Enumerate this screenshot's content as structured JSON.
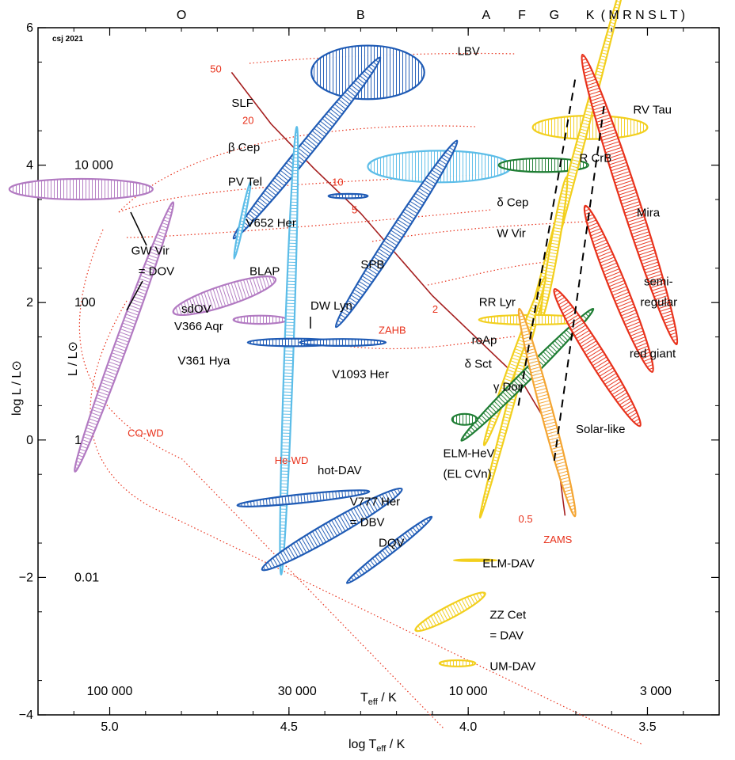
{
  "chart_data": {
    "type": "scatter",
    "title": "",
    "credit": "csj 2021",
    "xlabel": "log T_eff / K",
    "xlabel_parts": {
      "main": "log T",
      "sub": "eff",
      "tail": " / K"
    },
    "ylabel": "log L / L⊙",
    "inner_xlabel_parts": {
      "main": "T",
      "sub": "eff",
      "tail": " / K"
    },
    "inner_ylabel": "L / L⊙",
    "xlim": [
      5.2,
      3.3
    ],
    "ylim": [
      -4,
      6
    ],
    "x_ticks": [
      5.0,
      4.5,
      4.0,
      3.5
    ],
    "x_tick_labels": [
      "5.0",
      "4.5",
      "4.0",
      "3.5"
    ],
    "y_ticks": [
      -4,
      -2,
      0,
      2,
      4,
      6
    ],
    "y_tick_labels": [
      "−4",
      "−2",
      "0",
      "2",
      "4",
      "6"
    ],
    "teff_ticks": [
      {
        "x": 5.0,
        "label": "100 000"
      },
      {
        "x": 4.477,
        "label": "30 000"
      },
      {
        "x": 4.0,
        "label": "10 000"
      },
      {
        "x": 3.477,
        "label": "3 000"
      }
    ],
    "lum_ticks": [
      {
        "y": 4,
        "label": "10 000"
      },
      {
        "y": 2,
        "label": "100"
      },
      {
        "y": 0,
        "label": "1"
      },
      {
        "y": -2,
        "label": "0.01"
      }
    ],
    "spectral_types": [
      {
        "x": 4.8,
        "label": "O"
      },
      {
        "x": 4.3,
        "label": "B"
      },
      {
        "x": 3.95,
        "label": "A"
      },
      {
        "x": 3.85,
        "label": "F"
      },
      {
        "x": 3.76,
        "label": "G"
      },
      {
        "x": 3.66,
        "label": "K"
      },
      {
        "x": 3.63,
        "label": "( M R N S L T )"
      }
    ],
    "colors": {
      "blue": "#1f5bb5",
      "light_blue": "#5cbde8",
      "purple": "#b27ac2",
      "green": "#1e7d33",
      "yellow": "#f2cf1d",
      "orange": "#f4a532",
      "red": "#e8311b",
      "zams": "#a51f1f"
    },
    "regions": [
      {
        "name": "LBV",
        "x": 4.28,
        "y": 5.35,
        "rx": 0.315,
        "ry": 0.39,
        "rot": 0,
        "color": "blue"
      },
      {
        "name": "SLF",
        "x": 4.45,
        "y": 4.25,
        "rx": 0.65,
        "ry": 0.1,
        "rot": 51,
        "color": "blue"
      },
      {
        "name": "β Cep",
        "x": 4.08,
        "y": 3.98,
        "rx": 0.4,
        "ry": 0.23,
        "rot": 0,
        "color": "light_blue"
      },
      {
        "name": "SPB",
        "x": 4.2,
        "y": 3.0,
        "rx": 0.62,
        "ry": 0.1,
        "rot": 57,
        "color": "blue"
      },
      {
        "name": "V652 Her",
        "x": 4.335,
        "y": 3.55,
        "rx": 0.11,
        "ry": 0.032,
        "rot": 0,
        "color": "blue"
      },
      {
        "name": "PV Tel",
        "x": 4.63,
        "y": 3.2,
        "rx": 0.22,
        "ry": 0.028,
        "rot": 78,
        "color": "light_blue"
      },
      {
        "name": "GW Vir = DOV",
        "x": 5.08,
        "y": 3.65,
        "rx": 0.4,
        "ry": 0.15,
        "rot": 0,
        "color": "purple"
      },
      {
        "name": "sdOV",
        "x": 4.68,
        "y": 2.1,
        "rx": 0.3,
        "ry": 0.15,
        "rot": 18,
        "color": "purple"
      },
      {
        "name": "V366 Aqr",
        "x": 4.58,
        "y": 1.75,
        "rx": 0.15,
        "ry": 0.06,
        "rot": 0,
        "color": "purple"
      },
      {
        "name": "CO-WD",
        "x": 4.96,
        "y": 1.5,
        "rx": 0.8,
        "ry": 0.09,
        "rot": 70,
        "color": "purple"
      },
      {
        "name": "BLAP",
        "x": 4.5,
        "y": 1.3,
        "rx": 1.25,
        "ry": 0.065,
        "rot": 88,
        "color": "light_blue"
      },
      {
        "name": "V361 Hya",
        "x": 4.485,
        "y": 1.42,
        "rx": 0.26,
        "ry": 0.055,
        "rot": 0,
        "color": "blue"
      },
      {
        "name": "V1093 Her",
        "x": 4.35,
        "y": 1.42,
        "rx": 0.24,
        "ry": 0.05,
        "rot": 0,
        "color": "blue"
      },
      {
        "name": "hot-DAV",
        "x": 4.46,
        "y": -0.85,
        "rx": 0.37,
        "ry": 0.062,
        "rot": 6,
        "color": "blue"
      },
      {
        "name": "V777 Her = DBV",
        "x": 4.38,
        "y": -1.3,
        "rx": 0.45,
        "ry": 0.12,
        "rot": 30,
        "color": "blue"
      },
      {
        "name": "DQV",
        "x": 4.22,
        "y": -1.6,
        "rx": 0.3,
        "ry": 0.06,
        "rot": 38,
        "color": "blue"
      },
      {
        "name": "RV Tau",
        "x": 3.66,
        "y": 4.55,
        "rx": 0.32,
        "ry": 0.17,
        "rot": 0,
        "color": "yellow"
      },
      {
        "name": "R CrB",
        "x": 3.79,
        "y": 4.0,
        "rx": 0.25,
        "ry": 0.1,
        "rot": 0,
        "color": "green"
      },
      {
        "name": "δ Cep",
        "x": 3.76,
        "y": 2.9,
        "rx": 1.6,
        "ry": 0.06,
        "rot": 75,
        "color": "yellow"
      },
      {
        "name": "W Vir",
        "x": 3.76,
        "y": 2.8,
        "rx": 0.4,
        "ry": 0.06,
        "rot": 80,
        "color": "yellow"
      },
      {
        "name": "RR Lyr",
        "x": 3.82,
        "y": 1.75,
        "rx": 0.3,
        "ry": 0.07,
        "rot": 0,
        "color": "yellow"
      },
      {
        "name": "δ Sct",
        "x": 3.87,
        "y": 1.15,
        "rx": 0.5,
        "ry": 0.06,
        "rot": 70,
        "color": "yellow"
      },
      {
        "name": "γ Dor",
        "x": 3.835,
        "y": 0.95,
        "rx": 0.52,
        "ry": 0.08,
        "rot": 45,
        "color": "green"
      },
      {
        "name": "Solar-like",
        "x": 3.78,
        "y": 0.4,
        "rx": 0.6,
        "ry": 0.085,
        "rot": 105,
        "color": "orange"
      },
      {
        "name": "Mira",
        "x": 3.55,
        "y": 3.5,
        "rx": 0.85,
        "ry": 0.13,
        "rot": 108,
        "color": "red"
      },
      {
        "name": "semi-regular",
        "x": 3.58,
        "y": 2.2,
        "rx": 0.5,
        "ry": 0.12,
        "rot": 112,
        "color": "red"
      },
      {
        "name": "red giant",
        "x": 3.64,
        "y": 1.2,
        "rx": 0.45,
        "ry": 0.12,
        "rot": 122,
        "color": "red"
      },
      {
        "name": "ELM-HeV (EL CVn)",
        "x": 4.01,
        "y": 0.3,
        "rx": 0.07,
        "ry": 0.08,
        "rot": 0,
        "color": "green"
      },
      {
        "name": "ELM-DAV",
        "x": 3.98,
        "y": -1.75,
        "rx": 0.12,
        "ry": 0.012,
        "rot": 0,
        "color": "yellow"
      },
      {
        "name": "ZZ Cet = DAV",
        "x": 4.05,
        "y": -2.5,
        "rx": 0.22,
        "ry": 0.09,
        "rot": 28,
        "color": "yellow"
      },
      {
        "name": "UM-DAV",
        "x": 4.03,
        "y": -3.25,
        "rx": 0.1,
        "ry": 0.045,
        "rot": 0,
        "color": "yellow"
      }
    ],
    "labels": [
      {
        "text": "LBV",
        "x": 4.03,
        "y": 5.6
      },
      {
        "text": "SLF",
        "x": 4.66,
        "y": 4.85
      },
      {
        "text": "β Cep",
        "x": 4.67,
        "y": 4.2
      },
      {
        "text": "PV Tel",
        "x": 4.67,
        "y": 3.7
      },
      {
        "text": "V652 Her",
        "x": 4.62,
        "y": 3.1
      },
      {
        "text": "SPB",
        "x": 4.3,
        "y": 2.5
      },
      {
        "text": "GW Vir",
        "x": 4.94,
        "y": 2.7
      },
      {
        "text": "= DOV",
        "x": 4.92,
        "y": 2.4
      },
      {
        "text": "BLAP",
        "x": 4.61,
        "y": 2.4
      },
      {
        "text": "sdOV",
        "x": 4.8,
        "y": 1.85
      },
      {
        "text": "DW Lyn",
        "x": 4.44,
        "y": 1.9
      },
      {
        "text": "V366 Aqr",
        "x": 4.82,
        "y": 1.6
      },
      {
        "text": "V361 Hya",
        "x": 4.81,
        "y": 1.1
      },
      {
        "text": "V1093 Her",
        "x": 4.38,
        "y": 0.9
      },
      {
        "text": "hot-DAV",
        "x": 4.42,
        "y": -0.5
      },
      {
        "text": "V777 Her",
        "x": 4.33,
        "y": -0.95
      },
      {
        "text": "= DBV",
        "x": 4.33,
        "y": -1.25
      },
      {
        "text": "DQV",
        "x": 4.25,
        "y": -1.55
      },
      {
        "text": "RV Tau",
        "x": 3.54,
        "y": 4.75
      },
      {
        "text": "R CrB",
        "x": 3.69,
        "y": 4.05
      },
      {
        "text": "δ Cep",
        "x": 3.92,
        "y": 3.4
      },
      {
        "text": "W Vir",
        "x": 3.92,
        "y": 2.95
      },
      {
        "text": "Mira",
        "x": 3.53,
        "y": 3.25
      },
      {
        "text": "semi-",
        "x": 3.51,
        "y": 2.25
      },
      {
        "text": "regular",
        "x": 3.52,
        "y": 1.95
      },
      {
        "text": "RR Lyr",
        "x": 3.97,
        "y": 1.95
      },
      {
        "text": "roAp",
        "x": 3.99,
        "y": 1.4
      },
      {
        "text": "red giant",
        "x": 3.55,
        "y": 1.2
      },
      {
        "text": "δ Sct",
        "x": 4.01,
        "y": 1.05
      },
      {
        "text": "γ Dor",
        "x": 3.93,
        "y": 0.72
      },
      {
        "text": "Solar-like",
        "x": 3.7,
        "y": 0.1
      },
      {
        "text": "ELM-HeV",
        "x": 4.07,
        "y": -0.25
      },
      {
        "text": "(EL CVn)",
        "x": 4.07,
        "y": -0.55
      },
      {
        "text": "ELM-DAV",
        "x": 3.96,
        "y": -1.85
      },
      {
        "text": "ZZ Cet",
        "x": 3.94,
        "y": -2.6
      },
      {
        "text": "= DAV",
        "x": 3.94,
        "y": -2.9
      },
      {
        "text": "UM-DAV",
        "x": 3.94,
        "y": -3.35
      }
    ],
    "red_labels": [
      {
        "text": "50",
        "x": 4.72,
        "y": 5.35
      },
      {
        "text": "20",
        "x": 4.63,
        "y": 4.6
      },
      {
        "text": "10",
        "x": 4.38,
        "y": 3.7
      },
      {
        "text": "5",
        "x": 4.325,
        "y": 3.3
      },
      {
        "text": "2",
        "x": 4.1,
        "y": 1.85
      },
      {
        "text": "ZAHB",
        "x": 4.25,
        "y": 1.55
      },
      {
        "text": "CO-WD",
        "x": 4.95,
        "y": 0.05
      },
      {
        "text": "He-WD",
        "x": 4.54,
        "y": -0.35
      },
      {
        "text": "0.5",
        "x": 3.86,
        "y": -1.2
      },
      {
        "text": "ZAMS",
        "x": 3.79,
        "y": -1.5
      }
    ],
    "instability_strip": [
      {
        "x1": 3.86,
        "y1": 0.5,
        "x2": 3.7,
        "y2": 5.3
      },
      {
        "x1": 3.76,
        "y1": -0.3,
        "x2": 3.62,
        "y2": 4.9
      }
    ],
    "zams": [
      {
        "x": 4.66,
        "y": 5.35
      },
      {
        "x": 4.55,
        "y": 4.6
      },
      {
        "x": 4.43,
        "y": 3.95
      },
      {
        "x": 4.3,
        "y": 3.3
      },
      {
        "x": 4.1,
        "y": 2.1
      },
      {
        "x": 3.95,
        "y": 1.35
      },
      {
        "x": 3.85,
        "y": 0.85
      },
      {
        "x": 3.77,
        "y": 0.15
      },
      {
        "x": 3.745,
        "y": -0.5
      },
      {
        "x": 3.73,
        "y": -1.1
      }
    ]
  }
}
